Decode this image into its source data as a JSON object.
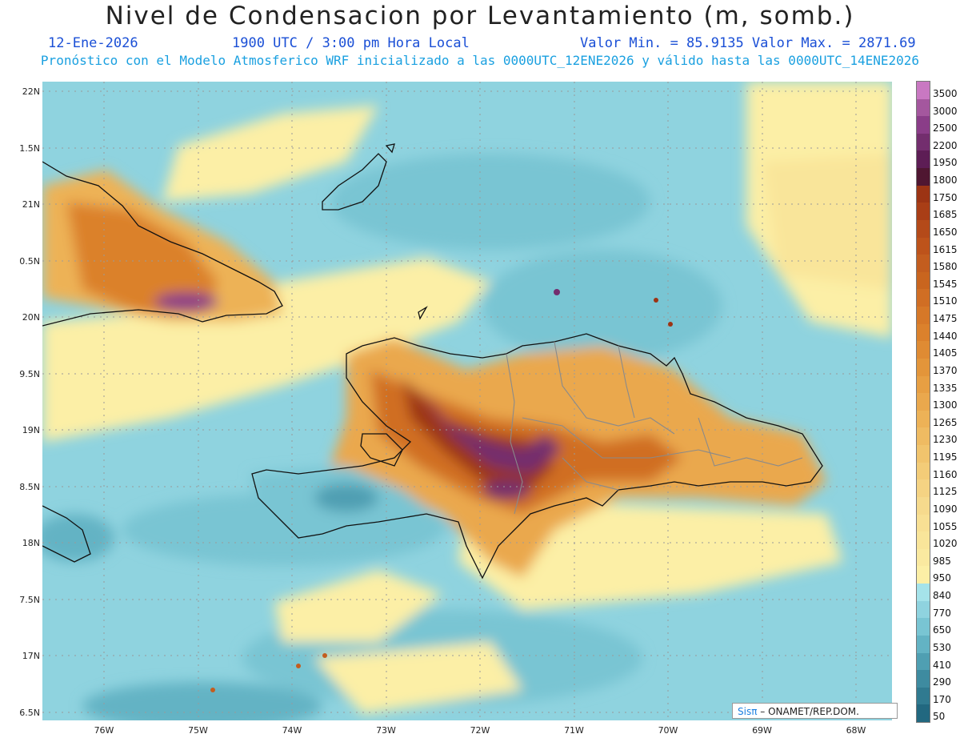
{
  "header": {
    "title": "Nivel de Condensacion por Levantamiento (m, somb.)",
    "date": "12-Ene-2026",
    "time": "1900 UTC / 3:00 pm Hora Local",
    "minmax": "Valor Min. = 85.9135  Valor Max. = 2871.69",
    "subtitle": "Pronóstico con el Modelo Atmosferico WRF inicializado a las 0000UTC_12ENE2026 y válido hasta las  0000UTC_14ENE2026"
  },
  "axes": {
    "lat_labels": [
      "22N",
      "1.5N",
      "21N",
      "0.5N",
      "20N",
      "9.5N",
      "19N",
      "8.5N",
      "18N",
      "7.5N",
      "17N",
      "6.5N"
    ],
    "lon_labels": [
      "76W",
      "75W",
      "74W",
      "73W",
      "72W",
      "71W",
      "70W",
      "69W",
      "68W"
    ]
  },
  "legend": {
    "labels": [
      "3500",
      "3000",
      "2500",
      "2200",
      "1950",
      "1800",
      "1750",
      "1685",
      "1650",
      "1615",
      "1580",
      "1545",
      "1510",
      "1475",
      "1440",
      "1405",
      "1370",
      "1335",
      "1300",
      "1265",
      "1230",
      "1195",
      "1160",
      "1125",
      "1090",
      "1055",
      "1020",
      "985",
      "950",
      "840",
      "770",
      "650",
      "530",
      "410",
      "290",
      "170",
      "50"
    ],
    "colors": [
      "#c978c2",
      "#a4579e",
      "#8a3d88",
      "#732e6e",
      "#5d1d55",
      "#4f1631",
      "#9c3414",
      "#a93e16",
      "#b44a19",
      "#bd531b",
      "#c35d1f",
      "#c9651f",
      "#d06e24",
      "#d67828",
      "#db812c",
      "#df8b33",
      "#e3953a",
      "#e79f43",
      "#eaa84d",
      "#edb257",
      "#efbb62",
      "#f1c46d",
      "#f3cc78",
      "#f5d383",
      "#f6da8d",
      "#f8e094",
      "#f9e59a",
      "#fae9a0",
      "#fcefa6",
      "#a5e3ea",
      "#8fd3df",
      "#79c5d3",
      "#63b3c4",
      "#4f9fb2",
      "#3e8ba0",
      "#307a90",
      "#226880"
    ]
  },
  "credit": {
    "brand": "Sisπ",
    "text": "– ONAMET/REP.DOM."
  }
}
